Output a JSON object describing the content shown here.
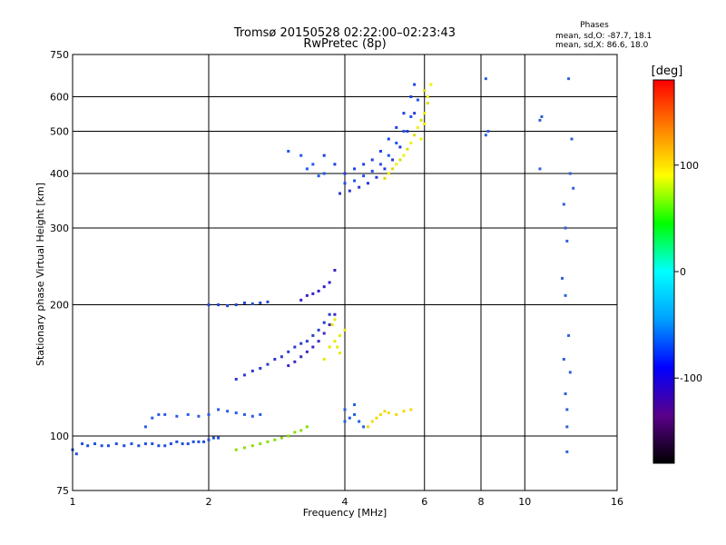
{
  "chart_data": {
    "type": "scatter",
    "title_line1": "Tromsø 20150528 02:22:00–02:23:43",
    "title_line2": "RwPretec (8p)",
    "phase_box": {
      "title": "Phases",
      "line1": "mean, sd,O: -87.7, 18.1",
      "line2": "mean, sd,X:  86.6, 18.0"
    },
    "xlabel": "Frequency [MHz]",
    "ylabel": "Stationary phase Virtual Height [km]",
    "x_scale": "log",
    "y_scale": "log",
    "xlim": [
      1,
      16
    ],
    "ylim": [
      75,
      750
    ],
    "x_ticks": [
      1,
      2,
      4,
      6,
      8,
      10,
      16
    ],
    "x_tick_labels": [
      "1",
      "2",
      "4",
      "6",
      "8",
      "10",
      "16"
    ],
    "y_ticks": [
      75,
      100,
      200,
      300,
      400,
      500,
      600,
      750
    ],
    "y_tick_labels": [
      "75",
      "100",
      "200",
      "300",
      "400",
      "500",
      "600",
      "750"
    ],
    "grid": true,
    "colorbar": {
      "label": "[deg]",
      "range": [
        -180,
        180
      ],
      "ticks": [
        100,
        0,
        -100
      ],
      "tick_labels": [
        "100",
        "0",
        "-100"
      ],
      "colors": [
        "#000000",
        "#5a008a",
        "#0000ff",
        "#00a0ff",
        "#00ffff",
        "#00ff00",
        "#ffff00",
        "#ff8000",
        "#ff0000"
      ]
    },
    "series": [
      {
        "phase_deg": -95,
        "color": "#1d4fe0",
        "points": [
          [
            1.0,
            93
          ],
          [
            1.02,
            91
          ],
          [
            1.05,
            96
          ],
          [
            1.08,
            95
          ],
          [
            1.12,
            96
          ],
          [
            1.16,
            95
          ],
          [
            1.2,
            95
          ],
          [
            1.25,
            96
          ],
          [
            1.3,
            95
          ],
          [
            1.35,
            96
          ],
          [
            1.4,
            95
          ],
          [
            1.45,
            96
          ],
          [
            1.5,
            96
          ],
          [
            1.55,
            95
          ],
          [
            1.6,
            95
          ],
          [
            1.65,
            96
          ],
          [
            1.7,
            97
          ],
          [
            1.75,
            96
          ],
          [
            1.8,
            96
          ],
          [
            1.85,
            97
          ],
          [
            1.9,
            97
          ],
          [
            1.95,
            97
          ],
          [
            2.0,
            98
          ],
          [
            2.05,
            99
          ],
          [
            2.1,
            99
          ]
        ]
      },
      {
        "phase_deg": -100,
        "color": "#2a5be8",
        "points": [
          [
            1.45,
            105
          ],
          [
            1.5,
            110
          ],
          [
            1.55,
            112
          ],
          [
            1.6,
            112
          ],
          [
            1.7,
            111
          ],
          [
            1.8,
            112
          ],
          [
            1.9,
            111
          ],
          [
            2.0,
            112
          ],
          [
            2.1,
            115
          ],
          [
            2.2,
            114
          ],
          [
            2.3,
            113
          ],
          [
            2.4,
            112
          ],
          [
            2.5,
            111
          ],
          [
            2.6,
            112
          ]
        ]
      },
      {
        "phase_deg": -105,
        "color": "#2245d8",
        "points": [
          [
            2.0,
            200
          ],
          [
            2.1,
            200
          ],
          [
            2.2,
            199
          ],
          [
            2.3,
            200
          ],
          [
            2.4,
            202
          ],
          [
            2.5,
            201
          ],
          [
            2.6,
            202
          ],
          [
            2.7,
            203
          ]
        ]
      },
      {
        "phase_deg": -110,
        "color": "#2a3ad0",
        "points": [
          [
            2.3,
            135
          ],
          [
            2.4,
            138
          ],
          [
            2.5,
            141
          ],
          [
            2.6,
            143
          ],
          [
            2.7,
            146
          ],
          [
            2.8,
            150
          ],
          [
            2.9,
            152
          ],
          [
            3.0,
            156
          ],
          [
            3.1,
            160
          ],
          [
            3.2,
            163
          ],
          [
            3.3,
            165
          ],
          [
            3.4,
            170
          ],
          [
            3.5,
            175
          ],
          [
            3.6,
            182
          ],
          [
            3.7,
            190
          ]
        ]
      },
      {
        "phase_deg": -115,
        "color": "#3a28c0",
        "points": [
          [
            3.0,
            145
          ],
          [
            3.1,
            148
          ],
          [
            3.2,
            152
          ],
          [
            3.3,
            156
          ],
          [
            3.4,
            160
          ],
          [
            3.5,
            165
          ],
          [
            3.6,
            172
          ],
          [
            3.7,
            180
          ],
          [
            3.8,
            190
          ]
        ]
      },
      {
        "phase_deg": -112,
        "color": "#3220c8",
        "points": [
          [
            3.2,
            205
          ],
          [
            3.3,
            210
          ],
          [
            3.4,
            212
          ],
          [
            3.5,
            215
          ],
          [
            3.6,
            220
          ],
          [
            3.7,
            225
          ],
          [
            3.8,
            240
          ]
        ]
      },
      {
        "phase_deg": 110,
        "color": "#e8e800",
        "points": [
          [
            3.6,
            150
          ],
          [
            3.7,
            160
          ],
          [
            3.8,
            165
          ],
          [
            3.9,
            170
          ],
          [
            4.0,
            175
          ],
          [
            3.75,
            180
          ],
          [
            3.8,
            185
          ],
          [
            3.85,
            160
          ],
          [
            3.9,
            155
          ]
        ]
      },
      {
        "phase_deg": -120,
        "color": "#1e40e8",
        "points": [
          [
            3.6,
            440
          ],
          [
            3.8,
            420
          ],
          [
            4.0,
            400
          ],
          [
            4.2,
            410
          ],
          [
            4.4,
            420
          ],
          [
            4.6,
            430
          ],
          [
            4.8,
            450
          ],
          [
            5.0,
            480
          ],
          [
            5.2,
            510
          ],
          [
            5.4,
            550
          ],
          [
            5.6,
            600
          ],
          [
            5.7,
            640
          ]
        ]
      },
      {
        "phase_deg": -118,
        "color": "#2050f0",
        "points": [
          [
            4.0,
            380
          ],
          [
            4.2,
            385
          ],
          [
            4.4,
            395
          ],
          [
            4.6,
            405
          ],
          [
            4.8,
            420
          ],
          [
            5.0,
            440
          ],
          [
            5.2,
            470
          ],
          [
            5.4,
            500
          ],
          [
            5.6,
            540
          ],
          [
            5.8,
            590
          ]
        ]
      },
      {
        "phase_deg": -125,
        "color": "#2838d8",
        "points": [
          [
            3.9,
            360
          ],
          [
            4.1,
            365
          ],
          [
            4.3,
            372
          ],
          [
            4.5,
            380
          ],
          [
            4.7,
            392
          ],
          [
            4.9,
            410
          ],
          [
            5.1,
            430
          ],
          [
            5.3,
            460
          ],
          [
            5.5,
            500
          ],
          [
            5.7,
            550
          ]
        ]
      },
      {
        "phase_deg": -110,
        "color": "#1c5af0",
        "points": [
          [
            3.0,
            450
          ],
          [
            3.2,
            440
          ],
          [
            3.4,
            420
          ],
          [
            3.6,
            400
          ],
          [
            3.5,
            395
          ],
          [
            3.3,
            410
          ]
        ]
      },
      {
        "phase_deg": 105,
        "color": "#f0f000",
        "points": [
          [
            5.0,
            400
          ],
          [
            5.2,
            420
          ],
          [
            5.4,
            440
          ],
          [
            5.6,
            470
          ],
          [
            5.8,
            510
          ],
          [
            6.0,
            550
          ],
          [
            6.1,
            600
          ],
          [
            6.2,
            640
          ],
          [
            5.9,
            480
          ],
          [
            6.0,
            520
          ]
        ]
      },
      {
        "phase_deg": 100,
        "color": "#dcdc00",
        "points": [
          [
            4.9,
            390
          ],
          [
            5.1,
            410
          ],
          [
            5.3,
            430
          ],
          [
            5.5,
            455
          ],
          [
            5.7,
            490
          ],
          [
            5.9,
            530
          ],
          [
            6.1,
            580
          ],
          [
            6.0,
            620
          ]
        ]
      },
      {
        "phase_deg": 95,
        "color": "#f5d800",
        "points": [
          [
            4.5,
            105
          ],
          [
            4.6,
            108
          ],
          [
            4.7,
            110
          ],
          [
            4.8,
            112
          ],
          [
            4.9,
            114
          ],
          [
            5.0,
            113
          ],
          [
            5.2,
            112
          ],
          [
            5.4,
            114
          ],
          [
            5.6,
            115
          ]
        ]
      },
      {
        "phase_deg": -100,
        "color": "#2060e0",
        "points": [
          [
            4.0,
            108
          ],
          [
            4.1,
            110
          ],
          [
            4.2,
            112
          ],
          [
            4.3,
            108
          ],
          [
            4.4,
            105
          ],
          [
            4.2,
            118
          ],
          [
            4.0,
            115
          ]
        ]
      },
      {
        "phase_deg": 60,
        "color": "#88e000",
        "points": [
          [
            2.6,
            96
          ],
          [
            2.7,
            97
          ],
          [
            2.8,
            98
          ],
          [
            2.9,
            99
          ],
          [
            3.0,
            100
          ],
          [
            3.1,
            102
          ],
          [
            3.2,
            103
          ],
          [
            3.3,
            105
          ],
          [
            2.5,
            95
          ],
          [
            2.4,
            94
          ],
          [
            2.3,
            93
          ]
        ]
      },
      {
        "phase_deg": -90,
        "color": "#3060d8",
        "points": [
          [
            8.2,
            660
          ],
          [
            8.2,
            490
          ],
          [
            8.3,
            500
          ],
          [
            10.8,
            530
          ],
          [
            10.9,
            540
          ],
          [
            10.8,
            410
          ],
          [
            12.5,
            660
          ],
          [
            12.7,
            480
          ],
          [
            12.6,
            400
          ],
          [
            12.8,
            370
          ],
          [
            12.2,
            340
          ],
          [
            12.3,
            300
          ],
          [
            12.4,
            280
          ],
          [
            12.1,
            230
          ],
          [
            12.3,
            210
          ],
          [
            12.5,
            170
          ],
          [
            12.2,
            150
          ],
          [
            12.6,
            140
          ],
          [
            12.3,
            125
          ],
          [
            12.4,
            115
          ],
          [
            12.4,
            105
          ],
          [
            12.4,
            92
          ]
        ]
      }
    ]
  }
}
